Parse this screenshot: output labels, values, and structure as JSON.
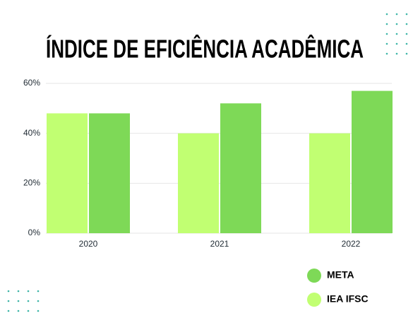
{
  "chart_data": {
    "type": "bar",
    "title": "ÍNDICE DE EFICIÊNCIA ACADÊMICA",
    "categories": [
      "2020",
      "2021",
      "2022"
    ],
    "series": [
      {
        "name": "IEA IFSC",
        "color": "#c1ff72",
        "values": [
          48,
          40,
          40
        ]
      },
      {
        "name": "META",
        "color": "#7ed957",
        "values": [
          48,
          52,
          57
        ]
      }
    ],
    "ylim": [
      0,
      60
    ],
    "yticks": [
      {
        "value": 0,
        "label": "0%"
      },
      {
        "value": 20,
        "label": "20%"
      },
      {
        "value": 40,
        "label": "40%"
      },
      {
        "value": 60,
        "label": "60%"
      }
    ],
    "grid": true,
    "legend": "bottom-right"
  }
}
